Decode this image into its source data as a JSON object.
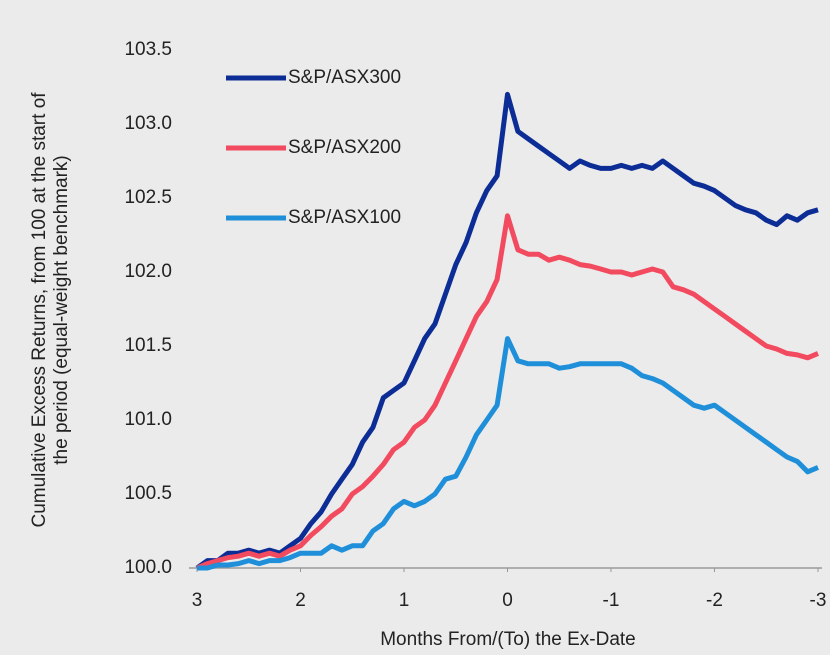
{
  "chart_data": {
    "type": "line",
    "y_label": [
      "Cumulative Excess Returns, from 100 at the start of",
      "the period (equal-weight benchmark)"
    ],
    "x_label": "Months From/(To) the Ex-Date",
    "x": [
      3,
      2.9,
      2.8,
      2.7,
      2.6,
      2.5,
      2.4,
      2.3,
      2.2,
      2.1,
      2,
      1.9,
      1.8,
      1.7,
      1.6,
      1.5,
      1.4,
      1.3,
      1.2,
      1.1,
      1,
      0.9,
      0.8,
      0.7,
      0.6,
      0.5,
      0.4,
      0.3,
      0.2,
      0.1,
      0,
      -0.1,
      -0.2,
      -0.3,
      -0.4,
      -0.5,
      -0.6,
      -0.7,
      -0.8,
      -0.9,
      -1,
      -1.1,
      -1.2,
      -1.3,
      -1.4,
      -1.5,
      -1.6,
      -1.7,
      -1.8,
      -1.9,
      -2,
      -2.1,
      -2.2,
      -2.3,
      -2.4,
      -2.5,
      -2.6,
      -2.7,
      -2.8,
      -2.9,
      -3
    ],
    "series": [
      {
        "name": "S&P/ASX300",
        "color": "#0c2d95",
        "values": [
          100,
          100.05,
          100.05,
          100.1,
          100.1,
          100.12,
          100.1,
          100.12,
          100.1,
          100.15,
          100.2,
          100.3,
          100.38,
          100.5,
          100.6,
          100.7,
          100.85,
          100.95,
          101.15,
          101.2,
          101.25,
          101.4,
          101.55,
          101.65,
          101.85,
          102.05,
          102.2,
          102.4,
          102.55,
          102.65,
          103.2,
          102.95,
          102.9,
          102.85,
          102.8,
          102.75,
          102.7,
          102.75,
          102.72,
          102.7,
          102.7,
          102.72,
          102.7,
          102.72,
          102.7,
          102.75,
          102.7,
          102.65,
          102.6,
          102.58,
          102.55,
          102.5,
          102.45,
          102.42,
          102.4,
          102.35,
          102.32,
          102.38,
          102.35,
          102.4,
          102.42
        ]
      },
      {
        "name": "S&P/ASX200",
        "color": "#f24a5e",
        "values": [
          100,
          100.03,
          100.05,
          100.07,
          100.08,
          100.1,
          100.08,
          100.1,
          100.08,
          100.12,
          100.15,
          100.22,
          100.28,
          100.35,
          100.4,
          100.5,
          100.55,
          100.62,
          100.7,
          100.8,
          100.85,
          100.95,
          101,
          101.1,
          101.25,
          101.4,
          101.55,
          101.7,
          101.8,
          101.95,
          102.38,
          102.15,
          102.12,
          102.12,
          102.08,
          102.1,
          102.08,
          102.05,
          102.04,
          102.02,
          102,
          102,
          101.98,
          102,
          102.02,
          102,
          101.9,
          101.88,
          101.85,
          101.8,
          101.75,
          101.7,
          101.65,
          101.6,
          101.55,
          101.5,
          101.48,
          101.45,
          101.44,
          101.42,
          101.45
        ]
      },
      {
        "name": "S&P/ASX100",
        "color": "#1f8fd9",
        "values": [
          100,
          100,
          100.02,
          100.02,
          100.03,
          100.05,
          100.03,
          100.05,
          100.05,
          100.07,
          100.1,
          100.1,
          100.1,
          100.15,
          100.12,
          100.15,
          100.15,
          100.25,
          100.3,
          100.4,
          100.45,
          100.42,
          100.45,
          100.5,
          100.6,
          100.62,
          100.75,
          100.9,
          101,
          101.1,
          101.55,
          101.4,
          101.38,
          101.38,
          101.38,
          101.35,
          101.36,
          101.38,
          101.38,
          101.38,
          101.38,
          101.38,
          101.35,
          101.3,
          101.28,
          101.25,
          101.2,
          101.15,
          101.1,
          101.08,
          101.1,
          101.05,
          101,
          100.95,
          100.9,
          100.85,
          100.8,
          100.75,
          100.72,
          100.65,
          100.68
        ]
      }
    ],
    "xlim": [
      3,
      -3
    ],
    "xticks": [
      3,
      2,
      1,
      0,
      -1,
      -2,
      -3
    ],
    "ylim": [
      100,
      103.5
    ],
    "yticks": [
      {
        "value": 100,
        "label": "100.0"
      },
      {
        "value": 100.5,
        "label": "100.5"
      },
      {
        "value": 101,
        "label": "101.0"
      },
      {
        "value": 101.5,
        "label": "101.5"
      },
      {
        "value": 102,
        "label": "102.0"
      },
      {
        "value": 102.5,
        "label": "102.5"
      },
      {
        "value": 103,
        "label": "103.0"
      },
      {
        "value": 103.5,
        "label": "103.5"
      }
    ],
    "legend": "upper left",
    "grid": false
  }
}
